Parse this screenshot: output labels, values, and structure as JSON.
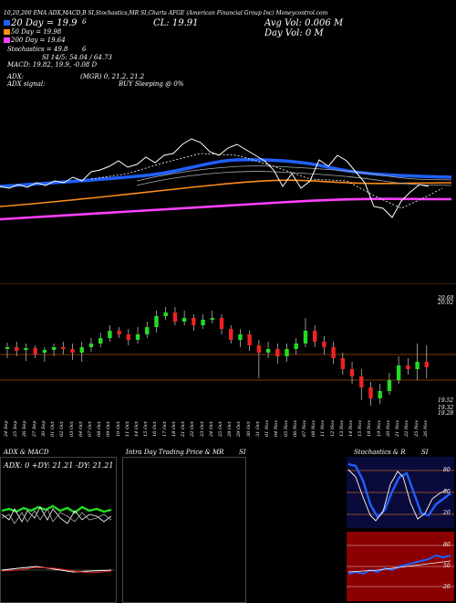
{
  "header": {
    "line1": "10,20,200 EMA ADX,MACD,B   SI,Stochastics,MR   SI,Charts AFGE   (American Financial Group Inc) Moneycontrol.com",
    "ema20": "20  Day = 19.9",
    "ema20_extra": "6",
    "ema50": "50  Day = 19.98",
    "ema200": "200  Day = 19.64",
    "stoch_line_a": "Stochastics = 49.8",
    "stoch_line_a_extra": "6",
    "stoch_line_b": "SI 14/5: 54.04  / 64.73",
    "macd": "MACD: 19.82,  19.9,  -0.08  D",
    "adx": "ADX:",
    "adx_mid": "(MGR) 0,  21.2,  21.2",
    "adx_signal": "ADX  signal:",
    "buy_sleeping": "BUY Sleeping @ 0%",
    "cl": "CL: 19.91",
    "avg_vol": "Avg Vol: 0.006   M",
    "day_vol": "Day Vol: 0   M"
  },
  "colors": {
    "ema20": "#2060ff",
    "ema50": "#ff8c1a",
    "ema200": "#ff40ff",
    "up": "#22dd22",
    "down": "#ee2222",
    "line": "#ffffff",
    "grid": "#7a3a0a"
  },
  "candle_panel": {
    "left_labels": {
      "top": "20.69",
      "mid": "20.02",
      "bottom1": "19.52",
      "bottom2": "19.32",
      "bottom3": "19.28"
    },
    "dates": [
      "24 Sep",
      "25 Sep",
      "26 Sep",
      "27 Sep",
      "30 Sep",
      "01 Oct",
      "02 Oct",
      "03 Oct",
      "04 Oct",
      "07 Oct",
      "08 Oct",
      "09 Oct",
      "10 Oct",
      "11 Oct",
      "14 Oct",
      "15 Oct",
      "16 Oct",
      "17 Oct",
      "18 Oct",
      "21 Oct",
      "22 Oct",
      "23 Oct",
      "24 Oct",
      "25 Oct",
      "28 Oct",
      "29 Oct",
      "30 Oct",
      "31 Oct",
      "01 Nov",
      "04 Nov",
      "05 Nov",
      "06 Nov",
      "07 Nov",
      "08 Nov",
      "11 Nov",
      "12 Nov",
      "13 Nov",
      "14 Nov",
      "15 Nov",
      "18 Nov",
      "19 Nov",
      "20 Nov",
      "21 Nov",
      "22 Nov",
      "25 Nov",
      "26 Nov"
    ]
  },
  "panels": {
    "adx_title": "ADX  & MACD",
    "adx_values": "ADX: 0  +DY: 21.21 -DY: 21.21",
    "intraday_title": "Intra  Day Trading Price  & MR",
    "intraday_si": "SI",
    "stoch_title": "Stochastics & R",
    "stoch_si": "SI",
    "stoch_levels": [
      "80",
      "50",
      "20"
    ],
    "rsi_levels": [
      "80",
      "50",
      "20"
    ]
  }
}
